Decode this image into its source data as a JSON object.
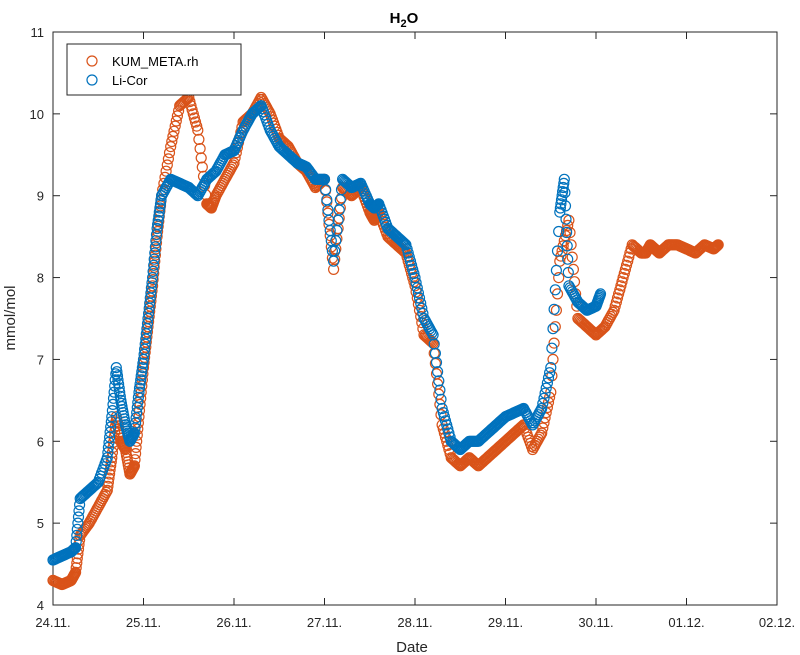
{
  "chart_data": {
    "type": "scatter",
    "title": "H",
    "title_sub": "2",
    "title_tail": "O",
    "xlabel": "Date",
    "ylabel": "mmol/mol",
    "xlim": [
      0,
      8
    ],
    "ylim": [
      4,
      11
    ],
    "xticks": [
      "24.11.",
      "25.11.",
      "26.11.",
      "27.11.",
      "28.11.",
      "29.11.",
      "30.11.",
      "01.12.",
      "02.12."
    ],
    "yticks": [
      "4",
      "5",
      "6",
      "7",
      "8",
      "9",
      "10",
      "11"
    ],
    "legend_position": "top-left",
    "series": [
      {
        "name": "KUM_META.rh",
        "color": "#D95319",
        "x": [
          0.0,
          0.1,
          0.2,
          0.25,
          0.3,
          0.4,
          0.5,
          0.6,
          0.65,
          0.7,
          0.75,
          0.8,
          0.85,
          0.9,
          0.95,
          1.0,
          1.05,
          1.1,
          1.15,
          1.2,
          1.3,
          1.4,
          1.5,
          1.6,
          1.7,
          1.75,
          1.8,
          1.9,
          2.0,
          2.1,
          2.2,
          2.3,
          2.4,
          2.5,
          2.6,
          2.7,
          2.8,
          2.9,
          3.0,
          3.1,
          3.2,
          3.3,
          3.4,
          3.5,
          3.55,
          3.6,
          3.7,
          3.8,
          3.9,
          4.0,
          4.1,
          4.2,
          4.3,
          4.4,
          4.5,
          4.6,
          4.7,
          4.8,
          4.9,
          5.0,
          5.1,
          5.2,
          5.3,
          5.4,
          5.5,
          5.6,
          5.7,
          5.8,
          5.9,
          6.0,
          6.1,
          6.2,
          6.3,
          6.4,
          6.5,
          6.55,
          6.6,
          6.65,
          6.7,
          6.8,
          6.9,
          7.0,
          7.1,
          7.2,
          7.3,
          7.35
        ],
        "y": [
          4.3,
          4.25,
          4.3,
          4.4,
          4.85,
          5.0,
          5.2,
          5.4,
          5.8,
          6.3,
          6.0,
          5.9,
          5.6,
          5.7,
          6.3,
          6.9,
          7.4,
          7.9,
          8.5,
          9.0,
          9.6,
          10.1,
          10.2,
          9.8,
          8.9,
          8.85,
          9.0,
          9.2,
          9.4,
          9.9,
          10.0,
          10.2,
          10.0,
          9.7,
          9.6,
          9.4,
          9.3,
          9.1,
          9.2,
          8.1,
          9.1,
          9.0,
          9.1,
          8.8,
          8.7,
          8.8,
          8.5,
          8.4,
          8.3,
          7.9,
          7.3,
          7.2,
          6.2,
          5.8,
          5.7,
          5.8,
          5.7,
          5.8,
          5.9,
          6.0,
          6.1,
          6.2,
          5.9,
          6.1,
          6.6,
          8.2,
          8.7,
          7.5,
          7.4,
          7.3,
          7.4,
          7.6,
          8.0,
          8.4,
          8.3,
          8.3,
          8.4,
          8.35,
          8.3,
          8.4,
          8.4,
          8.35,
          8.3,
          8.4,
          8.35,
          8.4
        ]
      },
      {
        "name": "Li-Cor",
        "color": "#0072BD",
        "x": [
          0.0,
          0.1,
          0.2,
          0.25,
          0.3,
          0.4,
          0.5,
          0.6,
          0.65,
          0.7,
          0.75,
          0.8,
          0.85,
          0.9,
          0.95,
          1.0,
          1.05,
          1.1,
          1.15,
          1.2,
          1.3,
          1.4,
          1.5,
          1.6,
          1.7,
          1.8,
          1.9,
          2.0,
          2.1,
          2.2,
          2.3,
          2.4,
          2.5,
          2.6,
          2.7,
          2.8,
          2.9,
          3.0,
          3.1,
          3.2,
          3.3,
          3.4,
          3.5,
          3.55,
          3.6,
          3.7,
          3.8,
          3.9,
          4.0,
          4.1,
          4.2,
          4.3,
          4.4,
          4.5,
          4.6,
          4.7,
          4.8,
          4.9,
          5.0,
          5.1,
          5.2,
          5.3,
          5.4,
          5.5,
          5.6,
          5.65,
          5.7,
          5.8,
          5.9,
          6.0,
          6.05
        ],
        "y": [
          4.55,
          4.6,
          4.65,
          4.7,
          5.3,
          5.4,
          5.5,
          5.8,
          6.3,
          6.9,
          6.5,
          6.2,
          6.0,
          6.1,
          6.6,
          7.0,
          7.5,
          8.0,
          8.6,
          9.0,
          9.2,
          9.15,
          9.1,
          9.0,
          9.2,
          9.3,
          9.5,
          9.55,
          9.8,
          10.0,
          10.1,
          9.8,
          9.6,
          9.5,
          9.4,
          9.35,
          9.2,
          9.2,
          8.2,
          9.2,
          9.1,
          9.15,
          8.9,
          8.85,
          8.9,
          8.6,
          8.5,
          8.4,
          8.0,
          7.5,
          7.3,
          6.4,
          6.0,
          5.9,
          6.0,
          6.0,
          6.1,
          6.2,
          6.3,
          6.35,
          6.4,
          6.2,
          6.4,
          6.9,
          8.8,
          9.2,
          7.9,
          7.7,
          7.6,
          7.65,
          7.8
        ]
      }
    ]
  }
}
